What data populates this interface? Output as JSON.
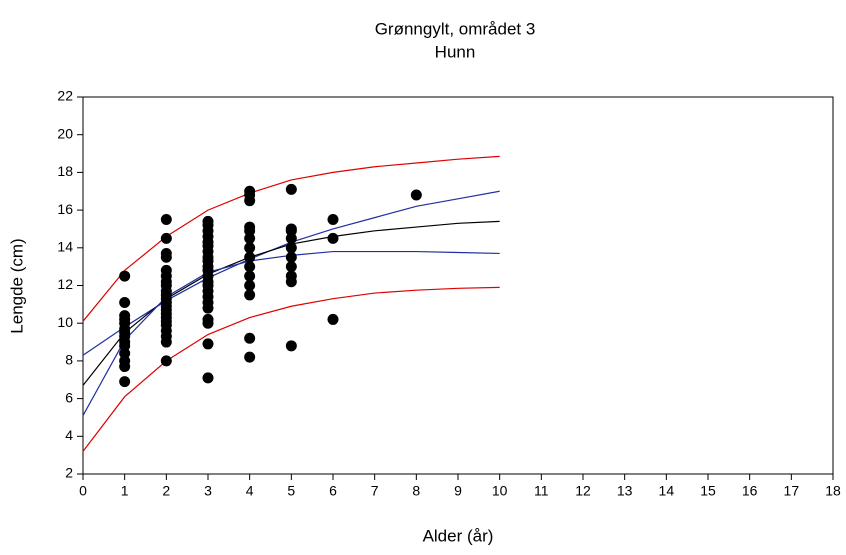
{
  "chart_data": {
    "type": "scatter",
    "title": "Grønngylt, området 3",
    "subtitle": "Hunn",
    "x_label": "Alder (år)",
    "y_label": "Lengde (cm)",
    "xlim": [
      0,
      18
    ],
    "xticks": [
      0,
      1,
      2,
      3,
      4,
      5,
      6,
      7,
      8,
      9,
      10,
      11,
      12,
      13,
      14,
      15,
      16,
      17,
      18
    ],
    "ylim": [
      2,
      22
    ],
    "yticks": [
      2,
      4,
      6,
      8,
      10,
      12,
      14,
      16,
      18,
      20,
      22
    ],
    "points": {
      "color": "#000000",
      "x": [
        1,
        1,
        1,
        1,
        1,
        1,
        1,
        1,
        1,
        1,
        1,
        1,
        1,
        1,
        2,
        2,
        2,
        2,
        2,
        2,
        2,
        2,
        2,
        2,
        2,
        2,
        2,
        2,
        2,
        2,
        2,
        2,
        2,
        2,
        2,
        2,
        3,
        3,
        3,
        3,
        3,
        3,
        3,
        3,
        3,
        3,
        3,
        3,
        3,
        3,
        3,
        3,
        3,
        3,
        3,
        3,
        3,
        3,
        4,
        4,
        4,
        4,
        4,
        4,
        4,
        4,
        4,
        4,
        4,
        4,
        4,
        4,
        5,
        5,
        5,
        5,
        5,
        5,
        5,
        5,
        5,
        5,
        6,
        6,
        6,
        8
      ],
      "y": [
        6.9,
        7.7,
        8.0,
        8.4,
        8.8,
        9.0,
        9.3,
        9.5,
        9.7,
        10.0,
        10.2,
        10.4,
        11.1,
        12.5,
        8.0,
        9.0,
        9.3,
        9.6,
        9.9,
        10.1,
        10.3,
        10.5,
        10.7,
        10.9,
        11.1,
        11.3,
        11.5,
        11.7,
        12.0,
        12.2,
        12.5,
        12.8,
        13.5,
        13.7,
        14.5,
        15.5,
        7.1,
        8.9,
        10.0,
        10.2,
        10.8,
        11.1,
        11.4,
        11.7,
        12.0,
        12.2,
        12.5,
        12.8,
        13.0,
        13.3,
        13.5,
        13.8,
        14.1,
        14.3,
        14.6,
        14.9,
        15.2,
        15.4,
        8.2,
        9.2,
        11.5,
        12.0,
        12.5,
        13.0,
        13.5,
        14.0,
        14.5,
        14.9,
        15.1,
        16.5,
        16.8,
        17.0,
        8.8,
        12.2,
        12.5,
        13.0,
        13.5,
        14.0,
        14.5,
        14.9,
        15.0,
        17.1,
        10.2,
        14.5,
        15.5,
        16.8
      ]
    },
    "curve_x": [
      0,
      1,
      2,
      3,
      4,
      5,
      6,
      7,
      8,
      9,
      10
    ],
    "lines": [
      {
        "color": "#e00000",
        "values": [
          10.1,
          12.8,
          14.6,
          16.0,
          16.9,
          17.6,
          18.0,
          18.3,
          18.5,
          18.7,
          18.85
        ]
      },
      {
        "color": "#2030a0",
        "values": [
          8.3,
          9.8,
          11.2,
          12.4,
          13.4,
          14.3,
          15.0,
          15.6,
          16.2,
          16.6,
          17.0
        ]
      },
      {
        "color": "#000000",
        "values": [
          6.7,
          9.5,
          11.3,
          12.6,
          13.5,
          14.2,
          14.6,
          14.9,
          15.1,
          15.3,
          15.4
        ]
      },
      {
        "color": "#2030a0",
        "values": [
          5.1,
          9.1,
          11.4,
          12.7,
          13.3,
          13.6,
          13.8,
          13.8,
          13.8,
          13.75,
          13.7
        ]
      },
      {
        "color": "#e00000",
        "values": [
          3.2,
          6.1,
          8.0,
          9.4,
          10.3,
          10.9,
          11.3,
          11.6,
          11.75,
          11.85,
          11.9
        ]
      }
    ]
  }
}
